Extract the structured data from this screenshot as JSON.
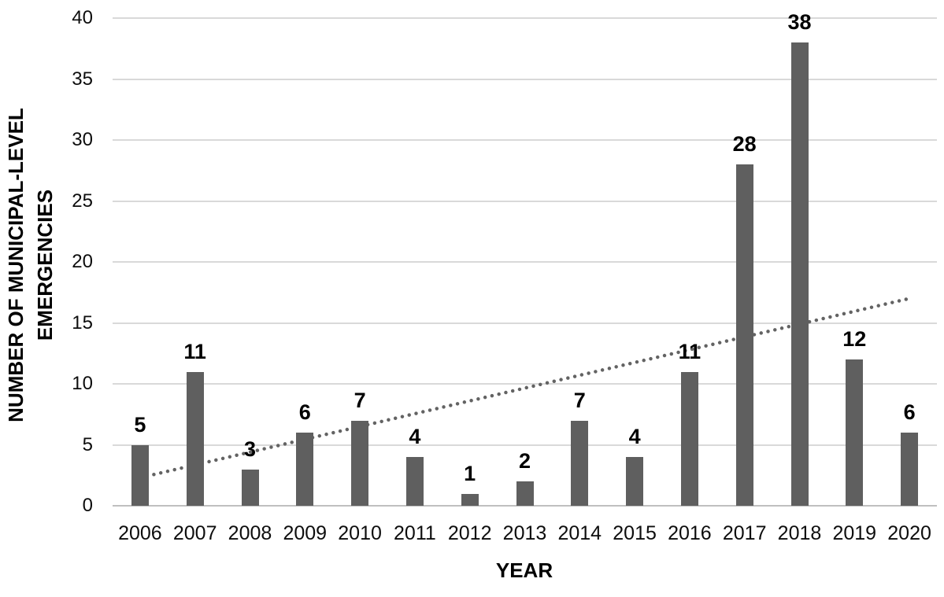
{
  "chart_data": {
    "type": "bar",
    "title": "",
    "categories": [
      "2006",
      "2007",
      "2008",
      "2009",
      "2010",
      "2011",
      "2012",
      "2013",
      "2014",
      "2015",
      "2016",
      "2017",
      "2018",
      "2019",
      "2020"
    ],
    "values": [
      5,
      11,
      3,
      6,
      7,
      4,
      1,
      2,
      7,
      4,
      11,
      28,
      38,
      12,
      6
    ],
    "xlabel": "YEAR",
    "ylabel_line1": "NUMBER OF MUNICIPAL-LEVEL",
    "ylabel_line2": "EMERGENCIES",
    "ylim": [
      0,
      40
    ],
    "yticks": [
      0,
      5,
      10,
      15,
      20,
      25,
      30,
      35,
      40
    ],
    "grid": "horizontal",
    "legend": "none",
    "bar_color": "#5f5f5f",
    "gridline_color": "#d9d9d9",
    "axisline_color": "#bfbfbf",
    "label_color": "#0d0d0d",
    "trendline": {
      "style": "dotted",
      "color": "#636363",
      "start_value": 2.3,
      "end_value": 17.0
    }
  }
}
